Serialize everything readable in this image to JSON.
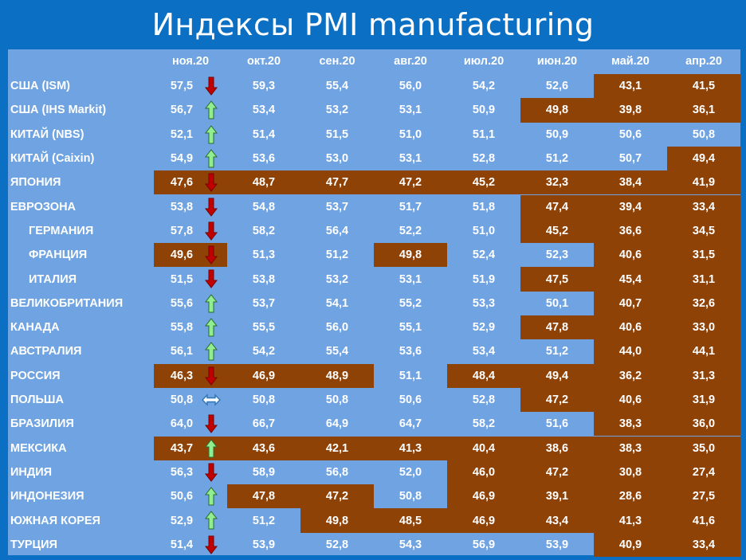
{
  "title": "Индексы PMI manufacturing",
  "columns": [
    "ноя.20",
    "окт.20",
    "сен.20",
    "авг.20",
    "июл.20",
    "июн.20",
    "май.20",
    "апр.20"
  ],
  "colors": {
    "background": "#0b6fc4",
    "table": "#6fa3e1",
    "below_50": "#8f4206",
    "arrow_up": "#90ee90",
    "arrow_down": "#c00000",
    "arrow_flat": "#2e75b6"
  },
  "rows": [
    {
      "name": "США (ISM)",
      "values": [
        "57,5",
        "59,3",
        "55,4",
        "56,0",
        "54,2",
        "52,6",
        "43,1",
        "41,5"
      ],
      "trend": "down"
    },
    {
      "name": "США (IHS Markit)",
      "values": [
        "56,7",
        "53,4",
        "53,2",
        "53,1",
        "50,9",
        "49,8",
        "39,8",
        "36,1"
      ],
      "trend": "up"
    },
    {
      "name": "КИТАЙ (NBS)",
      "values": [
        "52,1",
        "51,4",
        "51,5",
        "51,0",
        "51,1",
        "50,9",
        "50,6",
        "50,8"
      ],
      "trend": "up"
    },
    {
      "name": "КИТАЙ (Caixin)",
      "values": [
        "54,9",
        "53,6",
        "53,0",
        "53,1",
        "52,8",
        "51,2",
        "50,7",
        "49,4"
      ],
      "trend": "up"
    },
    {
      "name": "ЯПОНИЯ",
      "values": [
        "47,6",
        "48,7",
        "47,7",
        "47,2",
        "45,2",
        "32,3",
        "38,4",
        "41,9"
      ],
      "trend": "down"
    },
    {
      "name": "ЕВРОЗОНА",
      "values": [
        "53,8",
        "54,8",
        "53,7",
        "51,7",
        "51,8",
        "47,4",
        "39,4",
        "33,4"
      ],
      "trend": "down"
    },
    {
      "name": "ГЕРМАНИЯ",
      "values": [
        "57,8",
        "58,2",
        "56,4",
        "52,2",
        "51,0",
        "45,2",
        "36,6",
        "34,5"
      ],
      "trend": "down",
      "sub": true
    },
    {
      "name": "ФРАНЦИЯ",
      "values": [
        "49,6",
        "51,3",
        "51,2",
        "49,8",
        "52,4",
        "52,3",
        "40,6",
        "31,5"
      ],
      "trend": "down",
      "sub": true
    },
    {
      "name": "ИТАЛИЯ",
      "values": [
        "51,5",
        "53,8",
        "53,2",
        "53,1",
        "51,9",
        "47,5",
        "45,4",
        "31,1"
      ],
      "trend": "down",
      "sub": true
    },
    {
      "name": "ВЕЛИКОБРИТАНИЯ",
      "values": [
        "55,6",
        "53,7",
        "54,1",
        "55,2",
        "53,3",
        "50,1",
        "40,7",
        "32,6"
      ],
      "trend": "up"
    },
    {
      "name": "КАНАДА",
      "values": [
        "55,8",
        "55,5",
        "56,0",
        "55,1",
        "52,9",
        "47,8",
        "40,6",
        "33,0"
      ],
      "trend": "up"
    },
    {
      "name": "АВСТРАЛИЯ",
      "values": [
        "56,1",
        "54,2",
        "55,4",
        "53,6",
        "53,4",
        "51,2",
        "44,0",
        "44,1"
      ],
      "trend": "up"
    },
    {
      "name": "РОССИЯ",
      "values": [
        "46,3",
        "46,9",
        "48,9",
        "51,1",
        "48,4",
        "49,4",
        "36,2",
        "31,3"
      ],
      "trend": "down"
    },
    {
      "name": "ПОЛЬША",
      "values": [
        "50,8",
        "50,8",
        "50,8",
        "50,6",
        "52,8",
        "47,2",
        "40,6",
        "31,9"
      ],
      "trend": "flat"
    },
    {
      "name": "БРАЗИЛИЯ",
      "values": [
        "64,0",
        "66,7",
        "64,9",
        "64,7",
        "58,2",
        "51,6",
        "38,3",
        "36,0"
      ],
      "trend": "down"
    },
    {
      "name": "МЕКСИКА",
      "values": [
        "43,7",
        "43,6",
        "42,1",
        "41,3",
        "40,4",
        "38,6",
        "38,3",
        "35,0"
      ],
      "trend": "up"
    },
    {
      "name": "ИНДИЯ",
      "values": [
        "56,3",
        "58,9",
        "56,8",
        "52,0",
        "46,0",
        "47,2",
        "30,8",
        "27,4"
      ],
      "trend": "down"
    },
    {
      "name": "ИНДОНЕЗИЯ",
      "values": [
        "50,6",
        "47,8",
        "47,2",
        "50,8",
        "46,9",
        "39,1",
        "28,6",
        "27,5"
      ],
      "trend": "up"
    },
    {
      "name": "ЮЖНАЯ КОРЕЯ",
      "values": [
        "52,9",
        "51,2",
        "49,8",
        "48,5",
        "46,9",
        "43,4",
        "41,3",
        "41,6"
      ],
      "trend": "up"
    },
    {
      "name": "ТУРЦИЯ",
      "values": [
        "51,4",
        "53,9",
        "52,8",
        "54,3",
        "56,9",
        "53,9",
        "40,9",
        "33,4"
      ],
      "trend": "down"
    }
  ]
}
